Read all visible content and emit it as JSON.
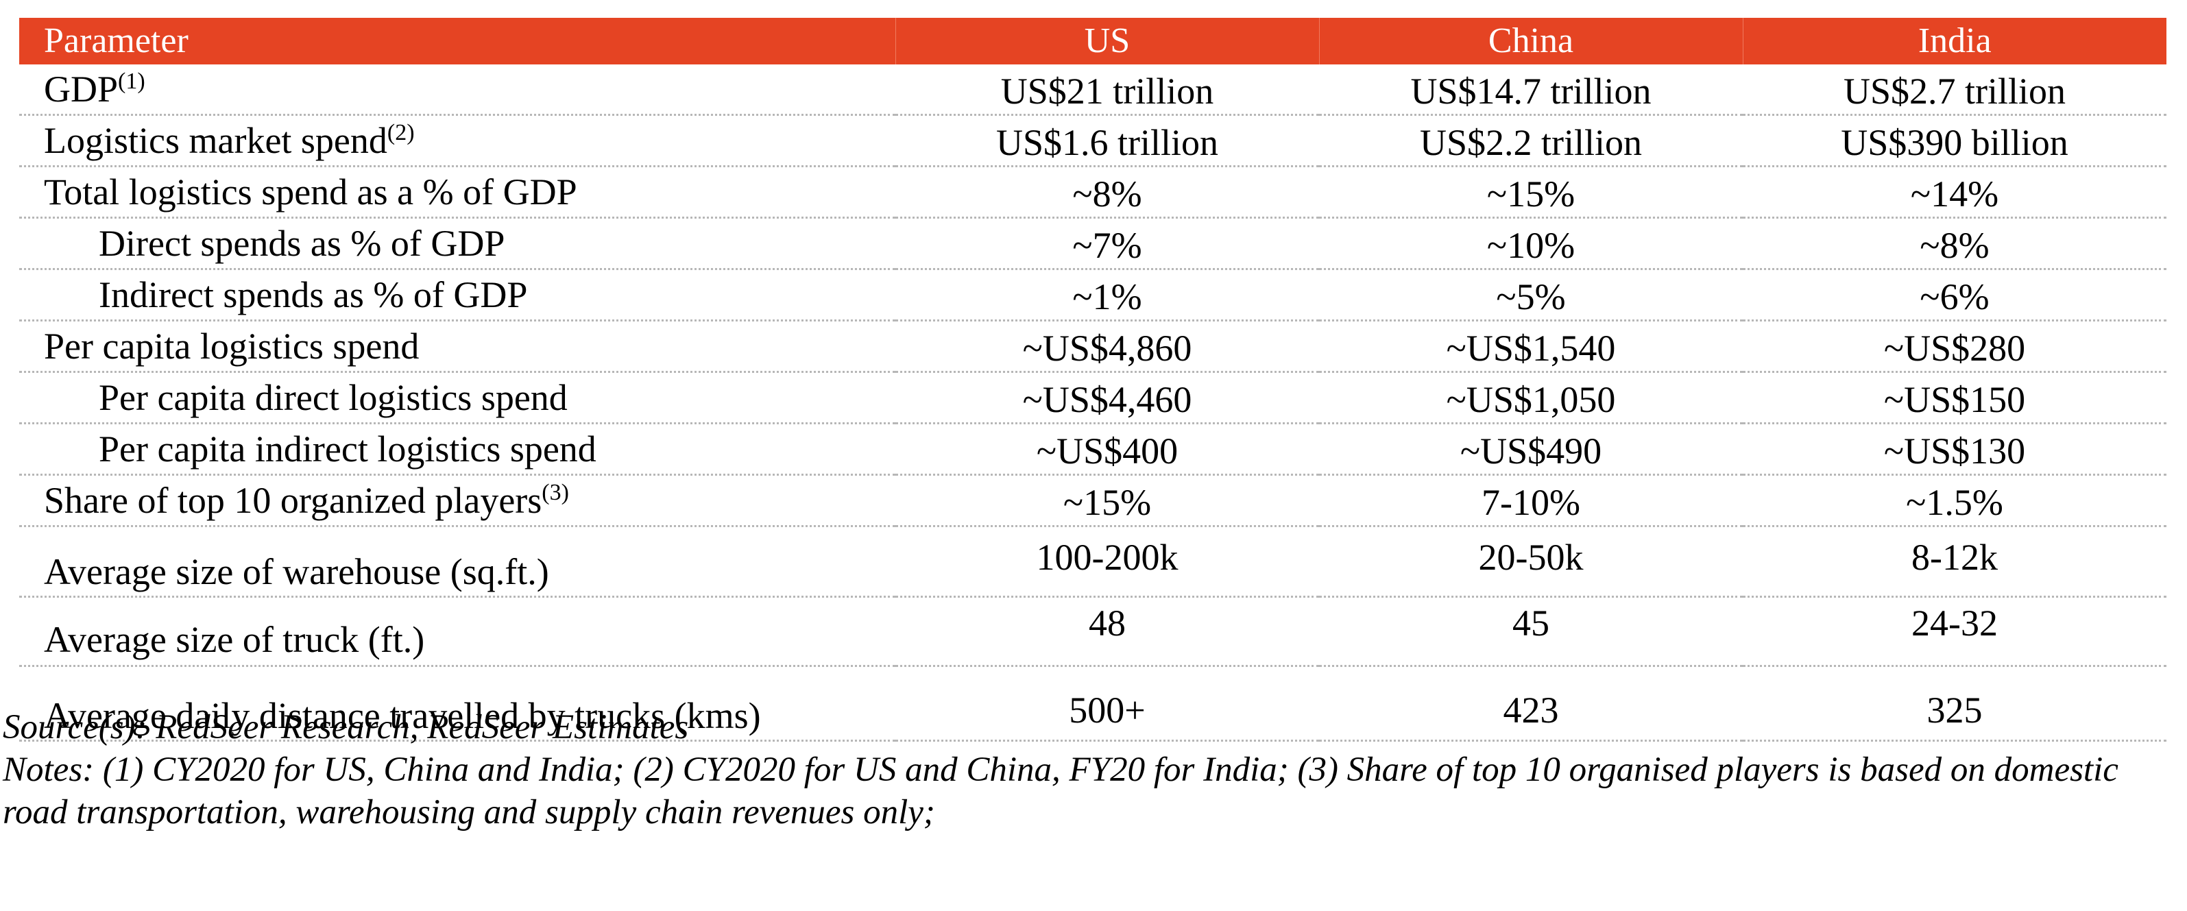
{
  "table": {
    "headers": {
      "parameter": "Parameter",
      "us": "US",
      "china": "China",
      "india": "India"
    },
    "rows": [
      {
        "label": "GDP",
        "sup": "(1)",
        "us": "US$21 trillion",
        "china": "US$14.7 trillion",
        "india": "US$2.7 trillion"
      },
      {
        "label": "Logistics market spend",
        "sup": "(2)",
        "us": "US$1.6 trillion",
        "china": "US$2.2 trillion",
        "india": "US$390 billion"
      },
      {
        "label": "Total logistics spend as a % of GDP",
        "us": "~8%",
        "china": "~15%",
        "india": "~14%"
      },
      {
        "label": "Direct spends as % of GDP",
        "us": "~7%",
        "china": "~10%",
        "india": "~8%"
      },
      {
        "label": "Indirect spends as % of GDP",
        "us": "~1%",
        "china": "~5%",
        "india": "~6%"
      },
      {
        "label": "Per capita logistics spend",
        "us": "~US$4,860",
        "china": "~US$1,540",
        "india": "~US$280"
      },
      {
        "label": "Per capita direct logistics spend",
        "us": "~US$4,460",
        "china": "~US$1,050",
        "india": "~US$150"
      },
      {
        "label": "Per capita indirect logistics spend",
        "us": "~US$400",
        "china": "~US$490",
        "india": "~US$130"
      },
      {
        "label": "Share of top 10 organized players",
        "sup": "(3)",
        "us": "~15%",
        "china": "7-10%",
        "india": "~1.5%"
      },
      {
        "label": "Average size of warehouse (sq.ft.)",
        "us": "100-200k",
        "china": "20-50k",
        "india": "8-12k"
      },
      {
        "label": "Average size of truck (ft.)",
        "us": "48",
        "china": "45",
        "india": "24-32"
      },
      {
        "label": "Average daily distance travelled by trucks (kms)",
        "us": "500+",
        "china": "423",
        "india": "325"
      }
    ]
  },
  "notes": {
    "source": "Source(s): RedSeer Research, RedSeer Estimates",
    "notes": "Notes: (1) CY2020 for US, China and India; (2) CY2020 for US and China, FY20 for India; (3) Share of top 10 organised players is based on domestic road transportation, warehousing and supply chain revenues only;"
  },
  "colors": {
    "header_background": "#e54423",
    "header_text": "#ffffff",
    "row_divider": "#b7b7b7"
  }
}
